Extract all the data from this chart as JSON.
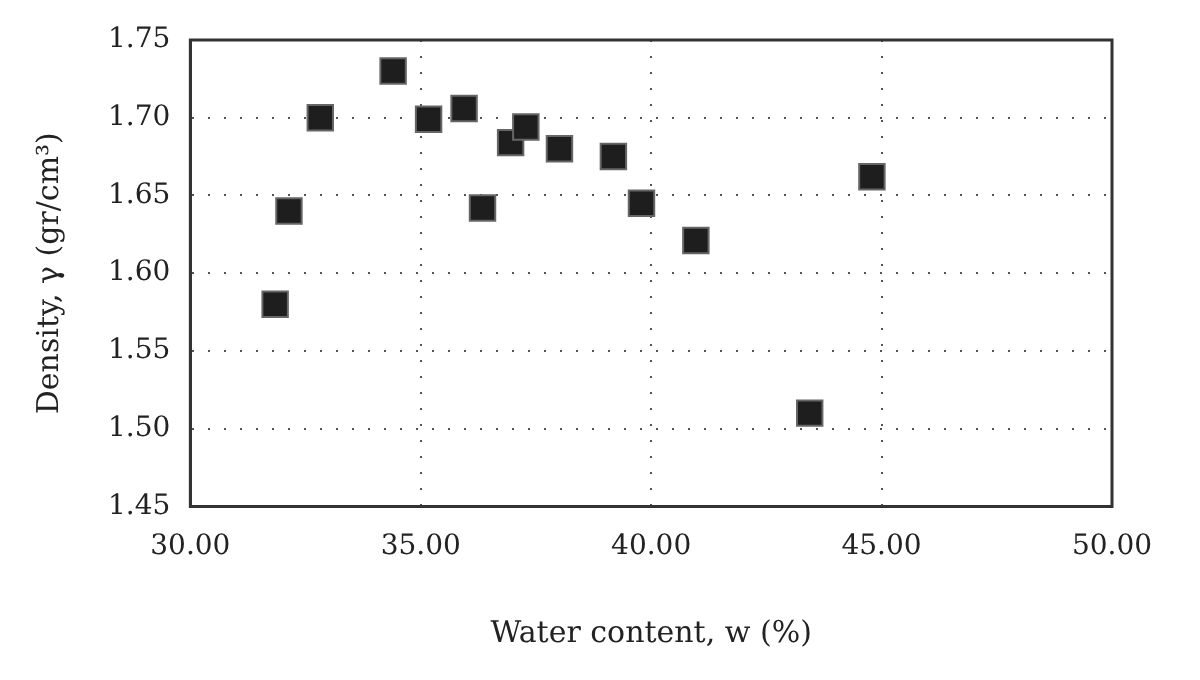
{
  "chart_data": {
    "type": "scatter",
    "xlabel": "Water content, w (%)",
    "ylabel": "Density, γ (gr/cm³)",
    "x": [
      31.84,
      32.14,
      32.82,
      34.4,
      35.17,
      35.94,
      36.34,
      36.95,
      37.28,
      38.01,
      39.18,
      39.79,
      40.97,
      43.44,
      44.79
    ],
    "series": [
      {
        "color": "#1e1e1e",
        "values": [
          1.58,
          1.64,
          1.7,
          1.73,
          1.699,
          1.706,
          1.642,
          1.684,
          1.694,
          1.68,
          1.675,
          1.645,
          1.621,
          1.51,
          1.662
        ]
      }
    ],
    "xlim": [
      30,
      50
    ],
    "xticks": [
      {
        "value": 30,
        "label": "30.00"
      },
      {
        "value": 35,
        "label": "35.00"
      },
      {
        "value": 40,
        "label": "40.00"
      },
      {
        "value": 45,
        "label": "45.00"
      },
      {
        "value": 50,
        "label": "50.00"
      }
    ],
    "ylim": [
      1.45,
      1.75
    ],
    "yticks": [
      {
        "value": 1.45,
        "label": "1.45"
      },
      {
        "value": 1.5,
        "label": "1.50"
      },
      {
        "value": 1.55,
        "label": "1.55"
      },
      {
        "value": 1.6,
        "label": "1.60"
      },
      {
        "value": 1.65,
        "label": "1.65"
      },
      {
        "value": 1.7,
        "label": "1.70"
      },
      {
        "value": 1.75,
        "label": "1.75"
      }
    ],
    "grid": true,
    "legend": false,
    "marker": "square"
  }
}
